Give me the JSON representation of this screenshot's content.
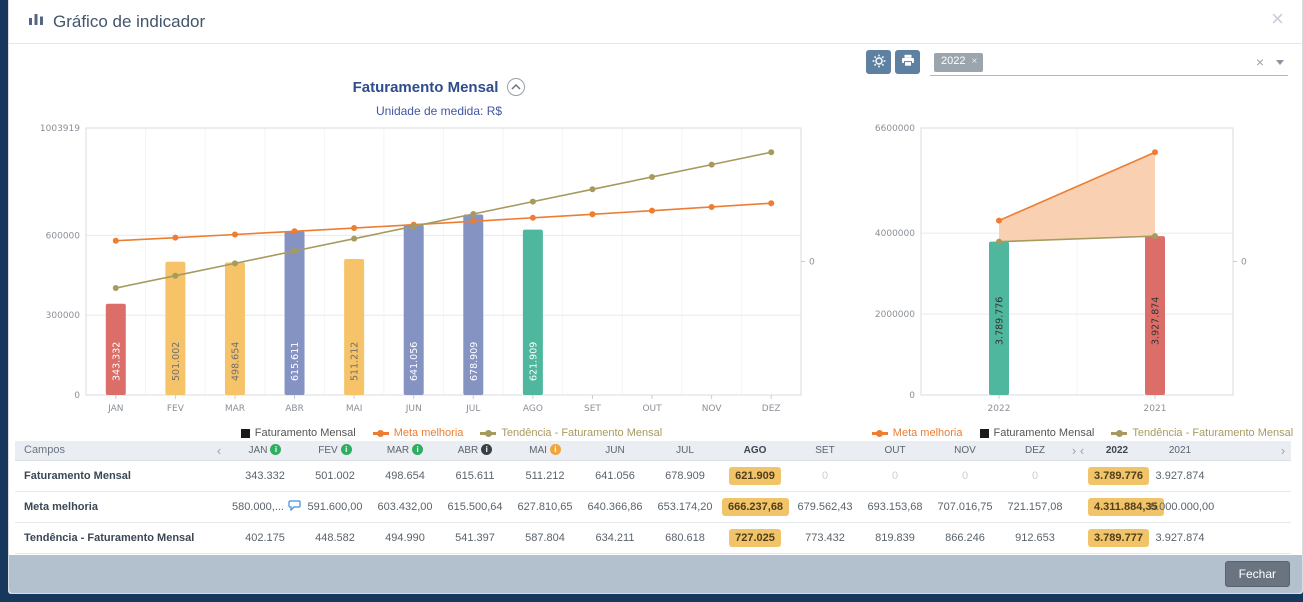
{
  "window": {
    "title": "Gráfico de indicador",
    "close_icon": "×"
  },
  "toolbar": {
    "year_filter": {
      "selected_tag": "2022",
      "tag_remove_icon": "×",
      "clear_icon": "×"
    }
  },
  "chart_header": {
    "title": "Faturamento Mensal",
    "subtitle": "Unidade de medida: R$"
  },
  "chart_data": [
    {
      "type": "bar",
      "name": "faturamento-mensal-por-mes",
      "title": "Faturamento Mensal",
      "categories": [
        "JAN",
        "FEV",
        "MAR",
        "ABR",
        "MAI",
        "JUN",
        "JUL",
        "AGO",
        "SET",
        "OUT",
        "NOV",
        "DEZ"
      ],
      "ylim": [
        0,
        1003919
      ],
      "y_ticks": [
        0,
        300000,
        600000
      ],
      "y_max_label": "1003919",
      "right_axis_label": "0",
      "series": [
        {
          "name": "Faturamento Mensal",
          "kind": "bar",
          "values": [
            343332,
            501002,
            498654,
            615611,
            511212,
            641056,
            678909,
            621909,
            null,
            null,
            null,
            null
          ],
          "labels": [
            "343.332",
            "501.002",
            "498.654",
            "615.611",
            "511.212",
            "641.056",
            "678.909",
            "621.909",
            "",
            "",
            "",
            ""
          ],
          "colors": [
            "#DC6E6A",
            "#F6C369",
            "#F6C369",
            "#8593C2",
            "#F6C369",
            "#8593C2",
            "#8593C2",
            "#4FB79D",
            "",
            "",
            "",
            ""
          ],
          "label_colors": [
            "#FFFFFF",
            "#6F6F6F",
            "#6F6F6F",
            "#FFFFFF",
            "#6F6F6F",
            "#FFFFFF",
            "#FFFFFF",
            "#FFFFFF",
            "",
            "",
            "",
            ""
          ]
        },
        {
          "name": "Meta melhoria",
          "kind": "line",
          "color": "#ED7D31",
          "values": [
            580000,
            591600,
            603432,
            615500.64,
            627810.65,
            640366.86,
            653174.2,
            666237.68,
            679562.43,
            693153.68,
            707016.75,
            721157.08
          ]
        },
        {
          "name": "Tendência - Faturamento Mensal",
          "kind": "line",
          "color": "#A79A5F",
          "values": [
            402175,
            448582,
            494990,
            541397,
            587804,
            634211,
            680618,
            727025,
            773432,
            819839,
            866246,
            912653
          ]
        }
      ],
      "legend": [
        {
          "label": "Faturamento Mensal",
          "marker": "square",
          "color": "#1A1A1A",
          "text_color": "#555555"
        },
        {
          "label": "Meta melhoria",
          "marker": "line-dot",
          "color": "#ED7D31",
          "text_color": "#ED7D31"
        },
        {
          "label": "Tendência - Faturamento Mensal",
          "marker": "line-dot",
          "color": "#A79A5F",
          "text_color": "#A79A5F"
        }
      ]
    },
    {
      "type": "bar",
      "name": "faturamento-anual",
      "categories": [
        "2022",
        "2021"
      ],
      "ylim": [
        0,
        6600000
      ],
      "y_ticks": [
        0,
        2000000,
        4000000
      ],
      "y_max_label": "6600000",
      "right_axis_label": "0",
      "series": [
        {
          "name": "Faturamento Mensal",
          "kind": "bar",
          "values": [
            3789776,
            3927874
          ],
          "labels": [
            "3.789.776",
            "3.927.874"
          ],
          "colors": [
            "#4FB79D",
            "#DC6E6A"
          ],
          "label_colors": [
            "#343434",
            "#343434"
          ]
        },
        {
          "name": "Meta melhoria",
          "kind": "area",
          "color": "#ED7D31",
          "fill": "#F9CFAE",
          "base_series": "Tendência - Faturamento Mensal",
          "values": [
            4311884.35,
            6000000
          ]
        },
        {
          "name": "Tendência - Faturamento Mensal",
          "kind": "line",
          "color": "#A79A5F",
          "values": [
            3789777,
            3927874
          ]
        }
      ],
      "legend": [
        {
          "label": "Meta melhoria",
          "marker": "line-dot",
          "color": "#ED7D31",
          "text_color": "#ED7D31"
        },
        {
          "label": "Faturamento Mensal",
          "marker": "square",
          "color": "#1A1A1A",
          "text_color": "#555555"
        },
        {
          "label": "Tendência - Faturamento Mensal",
          "marker": "line-dot",
          "color": "#A79A5F",
          "text_color": "#A79A5F"
        }
      ]
    }
  ],
  "table": {
    "fields_header": "Campos",
    "pager_prev_icon": "‹",
    "pager_next_icon": "›",
    "month_columns": [
      {
        "label": "JAN",
        "icon": "info",
        "icon_color": "#2EAE60"
      },
      {
        "label": "FEV",
        "icon": "info",
        "icon_color": "#2EAE60"
      },
      {
        "label": "MAR",
        "icon": "info",
        "icon_color": "#2EAE60"
      },
      {
        "label": "ABR",
        "icon": "info",
        "icon_color": "#3A3F45"
      },
      {
        "label": "MAI",
        "icon": "info",
        "icon_color": "#F0A63A"
      },
      {
        "label": "JUN"
      },
      {
        "label": "JUL"
      },
      {
        "label": "AGO",
        "bold": true
      },
      {
        "label": "SET"
      },
      {
        "label": "OUT"
      },
      {
        "label": "NOV"
      },
      {
        "label": "DEZ"
      }
    ],
    "year_columns": [
      {
        "label": "2022",
        "bold": true
      },
      {
        "label": "2021"
      }
    ],
    "rows": [
      {
        "label": "Faturamento Mensal",
        "values": [
          "343.332",
          "501.002",
          "498.654",
          "615.611",
          "511.212",
          "641.056",
          "678.909",
          "621.909",
          "0",
          "0",
          "0",
          "0"
        ],
        "highlight_index": 7,
        "year_values": [
          "3.789.776",
          "3.927.874"
        ],
        "year_highlight_index": 0
      },
      {
        "label": "Meta melhoria",
        "values": [
          "580.000,...",
          "591.600,00",
          "603.432,00",
          "615.500,64",
          "627.810,65",
          "640.366,86",
          "653.174,20",
          "666.237,68",
          "679.562,43",
          "693.153,68",
          "707.016,75",
          "721.157,08"
        ],
        "comment_icon_index": 0,
        "highlight_index": 7,
        "year_values": [
          "4.311.884,35",
          "6.000.000,00"
        ],
        "year_highlight_index": 0
      },
      {
        "label": "Tendência - Faturamento Mensal",
        "values": [
          "402.175",
          "448.582",
          "494.990",
          "541.397",
          "587.804",
          "634.211",
          "680.618",
          "727.025",
          "773.432",
          "819.839",
          "866.246",
          "912.653"
        ],
        "highlight_index": 7,
        "year_values": [
          "3.789.777",
          "3.927.874"
        ],
        "year_highlight_index": 0
      }
    ]
  },
  "footer": {
    "close_label": "Fechar"
  },
  "colors": {
    "accent_blue": "#2F4C8C",
    "subtitle_blue": "#4156A5",
    "highlight_badge": "#F2C469",
    "page_background": "#17375C",
    "footer_band": "#B3C0CE",
    "bar_red": "#DC6E6A",
    "bar_amber": "#F6C369",
    "bar_blue": "#8593C2",
    "bar_green": "#4FB79D",
    "meta_line": "#ED7D31",
    "trend_line": "#A79A5F"
  }
}
